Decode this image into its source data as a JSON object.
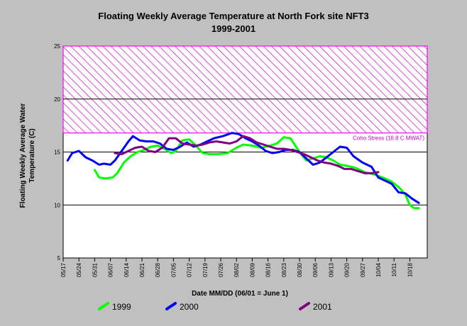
{
  "chart_data": {
    "type": "line",
    "title": "Floating Weekly Average Temperature at North Fork site NFT3",
    "subtitle": "1999-2001",
    "xlabel": "Date MM/DD (06/01 = June 1)",
    "ylabel": "Floating Weekly Average Water Temperature (C)",
    "ylim": [
      5,
      25
    ],
    "yticks": [
      5,
      10,
      15,
      20,
      25
    ],
    "x_ticks": [
      "05/17",
      "05/24",
      "05/31",
      "06/07",
      "06/14",
      "06/21",
      "06/28",
      "07/05",
      "07/12",
      "07/19",
      "07/26",
      "08/02",
      "08/09",
      "08/16",
      "08/23",
      "08/30",
      "09/06",
      "09/13",
      "09/20",
      "09/27",
      "10/04",
      "10/11",
      "10/18"
    ],
    "grid": "horizontal gridlines at 10, 15, 20",
    "legend_position": "bottom",
    "stress_band": {
      "label": "Coho Stress (16.8 C MWAT)",
      "ymin": 16.8,
      "ymax": 25,
      "color": "#ff00ff"
    },
    "series": [
      {
        "name": "1999",
        "color": "#00ff00",
        "points": [
          [
            "05/31",
            13.3
          ],
          [
            "06/02",
            12.6
          ],
          [
            "06/05",
            12.5
          ],
          [
            "06/08",
            12.6
          ],
          [
            "06/10",
            13.0
          ],
          [
            "06/13",
            14.0
          ],
          [
            "06/16",
            14.6
          ],
          [
            "06/19",
            15.0
          ],
          [
            "06/22",
            15.2
          ],
          [
            "06/25",
            15.5
          ],
          [
            "06/28",
            15.6
          ],
          [
            "07/01",
            15.3
          ],
          [
            "07/04",
            14.9
          ],
          [
            "07/06",
            15.1
          ],
          [
            "07/09",
            16.1
          ],
          [
            "07/12",
            16.2
          ],
          [
            "07/15",
            15.6
          ],
          [
            "07/18",
            14.9
          ],
          [
            "07/21",
            14.8
          ],
          [
            "07/25",
            14.8
          ],
          [
            "07/29",
            14.9
          ],
          [
            "08/02",
            15.4
          ],
          [
            "08/05",
            15.7
          ],
          [
            "08/09",
            15.6
          ],
          [
            "08/13",
            15.4
          ],
          [
            "08/17",
            15.6
          ],
          [
            "08/20",
            15.8
          ],
          [
            "08/23",
            16.4
          ],
          [
            "08/26",
            16.3
          ],
          [
            "08/30",
            15.0
          ],
          [
            "09/02",
            14.2
          ],
          [
            "09/05",
            14.4
          ],
          [
            "09/08",
            14.6
          ],
          [
            "09/11",
            14.5
          ],
          [
            "09/14",
            14.2
          ],
          [
            "09/17",
            13.8
          ],
          [
            "09/20",
            13.7
          ],
          [
            "09/24",
            13.5
          ],
          [
            "09/28",
            13.1
          ],
          [
            "10/02",
            12.9
          ],
          [
            "10/06",
            12.6
          ],
          [
            "10/10",
            12.2
          ],
          [
            "10/13",
            11.7
          ],
          [
            "10/16",
            11.0
          ],
          [
            "10/18",
            10.0
          ],
          [
            "10/20",
            9.7
          ],
          [
            "10/22",
            9.7
          ]
        ]
      },
      {
        "name": "2000",
        "color": "#0000ff",
        "points": [
          [
            "05/19",
            14.2
          ],
          [
            "05/21",
            14.9
          ],
          [
            "05/24",
            15.1
          ],
          [
            "05/27",
            14.5
          ],
          [
            "05/30",
            14.2
          ],
          [
            "06/02",
            13.8
          ],
          [
            "06/04",
            13.9
          ],
          [
            "06/07",
            13.8
          ],
          [
            "06/09",
            14.2
          ],
          [
            "06/12",
            15.1
          ],
          [
            "06/15",
            16.0
          ],
          [
            "06/17",
            16.5
          ],
          [
            "06/20",
            16.1
          ],
          [
            "06/23",
            16.0
          ],
          [
            "06/26",
            16.0
          ],
          [
            "06/29",
            15.8
          ],
          [
            "07/02",
            15.3
          ],
          [
            "07/05",
            15.2
          ],
          [
            "07/08",
            15.5
          ],
          [
            "07/11",
            15.9
          ],
          [
            "07/14",
            15.5
          ],
          [
            "07/17",
            15.7
          ],
          [
            "07/20",
            16.0
          ],
          [
            "07/23",
            16.3
          ],
          [
            "07/27",
            16.5
          ],
          [
            "07/31",
            16.8
          ],
          [
            "08/03",
            16.7
          ],
          [
            "08/06",
            16.3
          ],
          [
            "08/09",
            16.0
          ],
          [
            "08/12",
            15.6
          ],
          [
            "08/15",
            15.1
          ],
          [
            "08/18",
            14.9
          ],
          [
            "08/21",
            15.0
          ],
          [
            "08/24",
            15.2
          ],
          [
            "08/27",
            15.2
          ],
          [
            "08/30",
            15.0
          ],
          [
            "09/02",
            14.4
          ],
          [
            "09/05",
            13.8
          ],
          [
            "09/08",
            14.0
          ],
          [
            "09/11",
            14.5
          ],
          [
            "09/14",
            15.0
          ],
          [
            "09/17",
            15.5
          ],
          [
            "09/20",
            15.4
          ],
          [
            "09/23",
            14.6
          ],
          [
            "09/27",
            14.0
          ],
          [
            "10/01",
            13.6
          ],
          [
            "10/04",
            12.6
          ],
          [
            "10/07",
            12.3
          ],
          [
            "10/10",
            12.0
          ],
          [
            "10/13",
            11.2
          ],
          [
            "10/16",
            11.1
          ],
          [
            "10/19",
            10.6
          ],
          [
            "10/22",
            10.2
          ]
        ]
      },
      {
        "name": "2001",
        "color": "#800080",
        "points": [
          [
            "06/09",
            14.9
          ],
          [
            "06/12",
            14.8
          ],
          [
            "06/15",
            15.1
          ],
          [
            "06/18",
            15.4
          ],
          [
            "06/21",
            15.5
          ],
          [
            "06/24",
            15.1
          ],
          [
            "06/27",
            15.0
          ],
          [
            "06/30",
            15.4
          ],
          [
            "07/03",
            16.3
          ],
          [
            "07/06",
            16.3
          ],
          [
            "07/09",
            15.8
          ],
          [
            "07/12",
            15.7
          ],
          [
            "07/15",
            15.6
          ],
          [
            "07/18",
            15.7
          ],
          [
            "07/21",
            15.9
          ],
          [
            "07/24",
            16.0
          ],
          [
            "07/27",
            15.9
          ],
          [
            "07/30",
            15.8
          ],
          [
            "08/02",
            16.0
          ],
          [
            "08/05",
            16.5
          ],
          [
            "08/08",
            16.3
          ],
          [
            "08/11",
            15.9
          ],
          [
            "08/14",
            15.7
          ],
          [
            "08/17",
            15.5
          ],
          [
            "08/20",
            15.3
          ],
          [
            "08/23",
            15.3
          ],
          [
            "08/26",
            15.2
          ],
          [
            "08/29",
            15.0
          ],
          [
            "09/01",
            14.8
          ],
          [
            "09/04",
            14.5
          ],
          [
            "09/07",
            14.2
          ],
          [
            "09/10",
            14.0
          ],
          [
            "09/13",
            13.9
          ],
          [
            "09/16",
            13.7
          ],
          [
            "09/19",
            13.4
          ],
          [
            "09/22",
            13.4
          ],
          [
            "09/25",
            13.2
          ],
          [
            "09/28",
            13.0
          ],
          [
            "10/01",
            13.0
          ],
          [
            "10/04",
            13.1
          ]
        ]
      }
    ]
  }
}
